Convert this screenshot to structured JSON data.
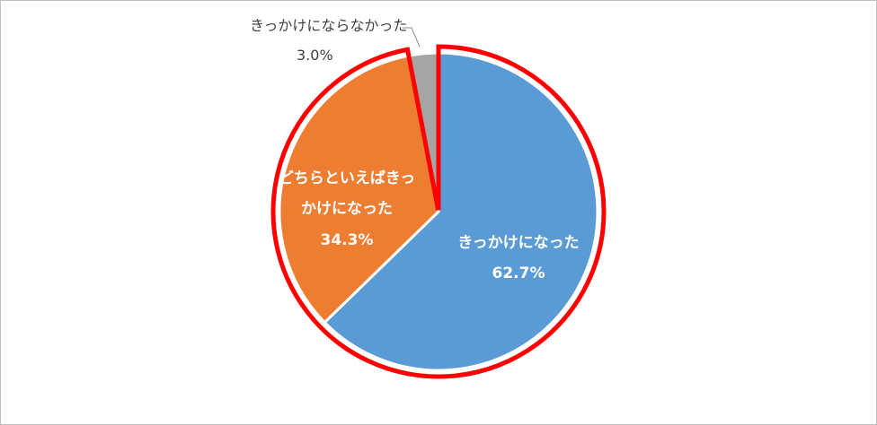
{
  "chart_data": {
    "type": "pie",
    "title": "",
    "slices": [
      {
        "label": "きっかけになった",
        "value": 62.7,
        "value_label": "62.7%",
        "color": "#5B9BD5"
      },
      {
        "label_lines": [
          "どちらといえばきっ",
          "かけになった"
        ],
        "label": "どちらといえばきっかけになった",
        "value": 34.3,
        "value_label": "34.3%",
        "color": "#ED7D31"
      },
      {
        "label": "きっかけにならなかった",
        "value": 3.0,
        "value_label": "3.0%",
        "color": "#A5A5A5"
      }
    ],
    "highlight": {
      "color": "#FF0000",
      "slices": [
        "きっかけになった",
        "どちらといえばきっかけになった"
      ]
    },
    "legend": "none"
  }
}
